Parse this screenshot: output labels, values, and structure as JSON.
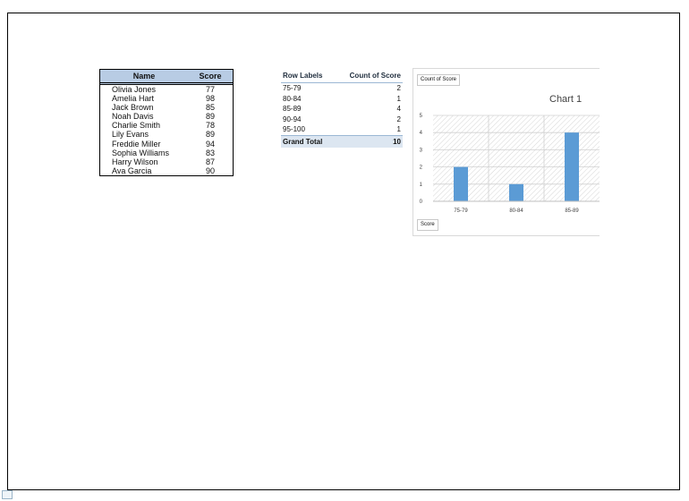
{
  "score_table": {
    "headers": {
      "name": "Name",
      "score": "Score"
    },
    "rows": [
      {
        "name": "Olivia Jones",
        "score": "77"
      },
      {
        "name": "Amelia Hart",
        "score": "98"
      },
      {
        "name": "Jack Brown",
        "score": "85"
      },
      {
        "name": "Noah Davis",
        "score": "89"
      },
      {
        "name": "Charlie Smith",
        "score": "78"
      },
      {
        "name": "Lily Evans",
        "score": "89"
      },
      {
        "name": "Freddie Miller",
        "score": "94"
      },
      {
        "name": "Sophia Williams",
        "score": "83"
      },
      {
        "name": "Harry Wilson",
        "score": "87"
      },
      {
        "name": "Ava Garcia",
        "score": "90"
      }
    ]
  },
  "pivot_table": {
    "headers": {
      "labels": "Row Labels",
      "count": "Count of Score"
    },
    "rows": [
      {
        "label": "75-79",
        "count": "2"
      },
      {
        "label": "80-84",
        "count": "1"
      },
      {
        "label": "85-89",
        "count": "4"
      },
      {
        "label": "90-94",
        "count": "2"
      },
      {
        "label": "95-100",
        "count": "1"
      }
    ],
    "total": {
      "label": "Grand Total",
      "count": "10"
    }
  },
  "chart": {
    "value_field_button": "Count of Score",
    "axis_field_button": "Score",
    "bar_color": "#5b9bd5"
  },
  "chart_data": {
    "type": "bar",
    "title": "Chart 1",
    "categories": [
      "75-79",
      "80-84",
      "85-89"
    ],
    "values": [
      2,
      1,
      4
    ],
    "ylim": [
      0,
      5
    ],
    "yticks": [
      "0",
      "1",
      "2",
      "3",
      "4",
      "5"
    ],
    "grid": true,
    "xlabel": "",
    "ylabel": ""
  }
}
